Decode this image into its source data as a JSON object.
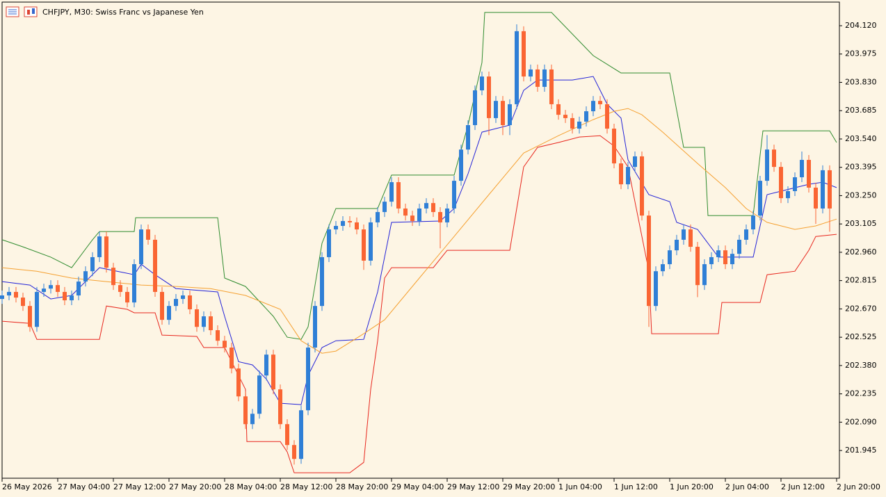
{
  "chart_data": {
    "type": "candlestick",
    "title": "CHFJPY, M30:  Swiss Franc vs Japanese Yen",
    "up_color": "#2f7fd6",
    "down_color": "#fa6533",
    "xlim": [
      0,
      120
    ],
    "ylim": [
      201.803,
      204.241
    ],
    "yticks": [
      {
        "value": 204.12,
        "label": "204.120"
      },
      203.975,
      {
        "value": 203.83,
        "label": "203.830"
      },
      203.685,
      {
        "value": 203.54,
        "label": "203.540"
      },
      203.395,
      {
        "value": 203.25,
        "label": "203.250"
      },
      203.105,
      {
        "value": 202.96,
        "label": "202.960"
      },
      202.815,
      {
        "value": 202.67,
        "label": "202.670"
      },
      202.525,
      {
        "value": 202.38,
        "label": "202.380"
      },
      202.235,
      {
        "value": 202.09,
        "label": "202.090"
      },
      201.945
    ],
    "xticks": [
      {
        "value": 0,
        "label": "26 May 2026"
      },
      {
        "value": 8,
        "label": "27 May 04:00"
      },
      {
        "value": 16,
        "label": "27 May 12:00"
      },
      {
        "value": 24,
        "label": "27 May 20:00"
      },
      {
        "value": 32,
        "label": "28 May 04:00"
      },
      {
        "value": 40,
        "label": "28 May 12:00"
      },
      {
        "value": 48,
        "label": "28 May 20:00"
      },
      {
        "value": 56,
        "label": "29 May 04:00"
      },
      {
        "value": 64,
        "label": "29 May 12:00"
      },
      {
        "value": 72,
        "label": "29 May 20:00"
      },
      {
        "value": 80,
        "label": "1 Jun 04:00"
      },
      {
        "value": 88,
        "label": "1 Jun 12:00"
      },
      {
        "value": 96,
        "label": "1 Jun 20:00"
      },
      {
        "value": 104,
        "label": "2 Jun 04:00"
      },
      {
        "value": 112,
        "label": "2 Jun 12:00"
      },
      {
        "value": 120,
        "label": "2 Jun 20:00"
      }
    ],
    "x": [
      0,
      1,
      2,
      3,
      4,
      5,
      6,
      7,
      8,
      9,
      10,
      11,
      12,
      13,
      14,
      15,
      16,
      17,
      18,
      19,
      20,
      21,
      22,
      23,
      24,
      25,
      26,
      27,
      28,
      29,
      30,
      31,
      32,
      33,
      34,
      35,
      36,
      37,
      38,
      39,
      40,
      41,
      42,
      43,
      44,
      45,
      46,
      47,
      48,
      49,
      50,
      51,
      52,
      53,
      54,
      55,
      56,
      57,
      58,
      59,
      60,
      61,
      62,
      63,
      64,
      65,
      66,
      67,
      68,
      69,
      70,
      71,
      72,
      73,
      74,
      75,
      76,
      77,
      78,
      79,
      80,
      81,
      82,
      83,
      84,
      85,
      86,
      87,
      88,
      89,
      90,
      91,
      92,
      93,
      94,
      95,
      96,
      97,
      98,
      99,
      100,
      101,
      102,
      103,
      104,
      105,
      106,
      107,
      108,
      109,
      110,
      111,
      112,
      113,
      114,
      115,
      116,
      117,
      118,
      119
    ],
    "candles": [
      [
        202.721,
        202.764,
        202.696,
        202.739
      ],
      [
        202.739,
        202.782,
        202.714,
        202.757
      ],
      [
        202.757,
        202.782,
        202.703,
        202.728
      ],
      [
        202.728,
        202.753,
        202.66,
        202.685
      ],
      [
        202.685,
        202.71,
        202.553,
        202.578
      ],
      [
        202.578,
        202.782,
        202.553,
        202.757
      ],
      [
        202.757,
        202.799,
        202.732,
        202.774
      ],
      [
        202.774,
        202.817,
        202.749,
        202.792
      ],
      [
        202.792,
        202.817,
        202.732,
        202.757
      ],
      [
        202.757,
        202.782,
        202.689,
        202.714
      ],
      [
        202.714,
        202.764,
        202.689,
        202.739
      ],
      [
        202.739,
        202.835,
        202.714,
        202.81
      ],
      [
        202.81,
        202.888,
        202.785,
        202.863
      ],
      [
        202.863,
        202.96,
        202.838,
        202.935
      ],
      [
        202.935,
        203.066,
        202.91,
        203.041
      ],
      [
        203.041,
        203.066,
        202.856,
        202.881
      ],
      [
        202.881,
        202.906,
        202.767,
        202.792
      ],
      [
        202.792,
        202.817,
        202.732,
        202.757
      ],
      [
        202.757,
        202.782,
        202.678,
        202.703
      ],
      [
        202.703,
        202.924,
        202.678,
        202.899
      ],
      [
        202.899,
        203.102,
        202.874,
        203.077
      ],
      [
        203.077,
        203.102,
        202.999,
        203.024
      ],
      [
        203.024,
        203.049,
        202.732,
        202.757
      ],
      [
        202.757,
        202.782,
        202.589,
        202.614
      ],
      [
        202.614,
        202.71,
        202.589,
        202.685
      ],
      [
        202.685,
        202.746,
        202.66,
        202.721
      ],
      [
        202.721,
        202.764,
        202.696,
        202.739
      ],
      [
        202.739,
        202.764,
        202.643,
        202.668
      ],
      [
        202.668,
        202.693,
        202.553,
        202.578
      ],
      [
        202.578,
        202.657,
        202.553,
        202.632
      ],
      [
        202.632,
        202.657,
        202.536,
        202.561
      ],
      [
        202.561,
        202.586,
        202.482,
        202.507
      ],
      [
        202.507,
        202.532,
        202.447,
        202.472
      ],
      [
        202.472,
        202.497,
        202.34,
        202.365
      ],
      [
        202.365,
        202.39,
        202.197,
        202.222
      ],
      [
        202.222,
        202.247,
        202.055,
        202.08
      ],
      [
        202.08,
        202.158,
        202.055,
        202.133
      ],
      [
        202.133,
        202.354,
        202.108,
        202.329
      ],
      [
        202.329,
        202.461,
        202.304,
        202.436
      ],
      [
        202.436,
        202.461,
        202.233,
        202.258
      ],
      [
        202.258,
        202.283,
        202.055,
        202.08
      ],
      [
        202.08,
        202.105,
        201.948,
        201.973
      ],
      [
        201.973,
        201.998,
        201.873,
        201.902
      ],
      [
        201.902,
        202.176,
        201.877,
        202.151
      ],
      [
        202.151,
        202.497,
        202.126,
        202.472
      ],
      [
        202.472,
        202.71,
        202.447,
        202.685
      ],
      [
        202.685,
        202.96,
        202.66,
        202.935
      ],
      [
        202.935,
        203.102,
        202.91,
        203.077
      ],
      [
        203.077,
        203.12,
        203.052,
        203.095
      ],
      [
        203.095,
        203.145,
        203.07,
        203.12
      ],
      [
        203.12,
        203.145,
        203.088,
        203.113
      ],
      [
        203.113,
        203.138,
        203.052,
        203.077
      ],
      [
        203.077,
        203.102,
        202.87,
        202.917
      ],
      [
        202.917,
        203.138,
        202.892,
        203.113
      ],
      [
        203.113,
        203.191,
        203.088,
        203.166
      ],
      [
        203.166,
        203.244,
        203.141,
        203.219
      ],
      [
        203.219,
        203.344,
        203.194,
        203.319
      ],
      [
        203.319,
        203.344,
        203.159,
        203.184
      ],
      [
        203.184,
        203.209,
        203.123,
        203.148
      ],
      [
        203.148,
        203.173,
        203.095,
        203.12
      ],
      [
        203.12,
        203.209,
        203.095,
        203.184
      ],
      [
        203.184,
        203.237,
        203.159,
        203.212
      ],
      [
        203.212,
        203.237,
        203.141,
        203.166
      ],
      [
        203.166,
        203.191,
        202.98,
        203.113
      ],
      [
        203.113,
        203.209,
        203.088,
        203.184
      ],
      [
        203.184,
        203.351,
        203.159,
        203.326
      ],
      [
        203.326,
        203.511,
        203.301,
        203.486
      ],
      [
        203.486,
        203.636,
        203.461,
        203.611
      ],
      [
        203.611,
        203.814,
        203.586,
        203.789
      ],
      [
        203.789,
        203.885,
        203.764,
        203.86
      ],
      [
        203.86,
        203.885,
        203.56,
        203.647
      ],
      [
        203.647,
        203.76,
        203.622,
        203.735
      ],
      [
        203.735,
        203.76,
        203.56,
        203.611
      ],
      [
        203.611,
        203.743,
        203.56,
        203.718
      ],
      [
        203.718,
        204.127,
        203.693,
        204.092
      ],
      [
        204.092,
        204.117,
        203.835,
        203.86
      ],
      [
        203.86,
        203.921,
        203.835,
        203.896
      ],
      [
        203.896,
        203.921,
        203.782,
        203.807
      ],
      [
        203.807,
        203.921,
        203.782,
        203.896
      ],
      [
        203.896,
        203.921,
        203.693,
        203.718
      ],
      [
        203.718,
        203.743,
        203.639,
        203.664
      ],
      [
        203.664,
        203.689,
        203.622,
        203.647
      ],
      [
        203.647,
        203.672,
        203.568,
        203.593
      ],
      [
        203.593,
        203.654,
        203.568,
        203.629
      ],
      [
        203.629,
        203.707,
        203.604,
        203.682
      ],
      [
        203.682,
        203.76,
        203.657,
        203.735
      ],
      [
        203.735,
        203.76,
        203.693,
        203.718
      ],
      [
        203.718,
        203.743,
        203.568,
        203.593
      ],
      [
        203.593,
        203.618,
        203.39,
        203.415
      ],
      [
        203.415,
        203.44,
        203.283,
        203.308
      ],
      [
        203.308,
        203.422,
        203.283,
        203.397
      ],
      [
        203.397,
        203.476,
        203.372,
        203.451
      ],
      [
        203.451,
        203.476,
        203.123,
        203.148
      ],
      [
        203.148,
        203.173,
        202.578,
        202.685
      ],
      [
        202.685,
        202.888,
        202.66,
        202.863
      ],
      [
        202.863,
        202.924,
        202.838,
        202.899
      ],
      [
        202.899,
        202.995,
        202.874,
        202.97
      ],
      [
        202.97,
        203.049,
        202.945,
        203.024
      ],
      [
        203.024,
        203.102,
        202.999,
        203.077
      ],
      [
        203.077,
        203.102,
        202.963,
        202.988
      ],
      [
        202.988,
        203.013,
        202.73,
        202.792
      ],
      [
        202.792,
        202.924,
        202.767,
        202.899
      ],
      [
        202.899,
        202.96,
        202.874,
        202.935
      ],
      [
        202.935,
        202.995,
        202.91,
        202.97
      ],
      [
        202.97,
        202.995,
        202.874,
        202.899
      ],
      [
        202.899,
        202.977,
        202.874,
        202.952
      ],
      [
        202.952,
        203.049,
        202.927,
        203.024
      ],
      [
        203.024,
        203.102,
        202.999,
        203.077
      ],
      [
        203.077,
        203.173,
        203.052,
        203.148
      ],
      [
        203.148,
        203.351,
        203.123,
        203.326
      ],
      [
        203.326,
        203.56,
        203.301,
        203.486
      ],
      [
        203.486,
        203.511,
        203.372,
        203.397
      ],
      [
        203.397,
        203.422,
        203.212,
        203.237
      ],
      [
        203.237,
        203.298,
        203.212,
        203.273
      ],
      [
        203.273,
        203.369,
        203.248,
        203.344
      ],
      [
        203.344,
        203.476,
        203.319,
        203.433
      ],
      [
        203.433,
        203.458,
        203.266,
        203.291
      ],
      [
        203.291,
        203.316,
        203.105,
        203.184
      ],
      [
        203.184,
        203.405,
        203.159,
        203.38
      ],
      [
        203.38,
        203.405,
        203.065,
        203.184
      ]
    ],
    "series": [
      {
        "color": "#2e8b2e",
        "x": [
          0,
          3,
          7,
          10,
          13,
          14,
          19,
          19.2,
          31,
          32,
          35,
          39,
          41,
          43,
          44,
          46,
          48,
          54,
          56,
          65,
          67,
          69,
          69.4,
          79,
          85,
          89,
          96,
          98,
          101,
          101.5,
          108,
          109.4,
          119,
          120
        ],
        "values": [
          203.024,
          202.988,
          202.935,
          202.881,
          203.024,
          203.066,
          203.066,
          203.137,
          203.137,
          202.828,
          202.785,
          202.632,
          202.525,
          202.514,
          202.578,
          203.006,
          203.184,
          203.184,
          203.355,
          203.355,
          203.611,
          203.931,
          204.188,
          204.188,
          203.967,
          203.878,
          203.878,
          203.497,
          203.497,
          203.148,
          203.148,
          203.582,
          203.582,
          203.522
        ]
      },
      {
        "color": "#e8251c",
        "x": [
          0,
          4,
          5,
          14,
          15,
          18,
          19,
          22,
          23,
          28,
          29,
          32,
          35,
          35.2,
          40,
          41,
          42,
          50,
          52,
          53,
          54,
          55,
          56,
          62,
          64,
          73,
          74,
          75,
          77,
          80,
          83,
          86,
          88,
          90,
          93,
          93.4,
          103,
          103.5,
          109,
          110,
          114,
          116,
          117,
          120
        ],
        "values": [
          202.607,
          202.596,
          202.514,
          202.514,
          202.685,
          202.668,
          202.65,
          202.65,
          202.536,
          202.529,
          202.472,
          202.472,
          202.258,
          201.991,
          201.991,
          201.938,
          201.831,
          201.831,
          201.884,
          202.258,
          202.507,
          202.828,
          202.881,
          202.881,
          202.97,
          202.97,
          203.184,
          203.397,
          203.497,
          203.522,
          203.55,
          203.557,
          203.504,
          203.397,
          202.863,
          202.543,
          202.543,
          202.703,
          202.703,
          202.845,
          202.863,
          202.97,
          203.041,
          203.052
        ]
      },
      {
        "color": "#2323d8",
        "x": [
          0,
          4,
          7,
          10,
          14,
          19,
          20,
          22,
          25,
          31,
          32,
          34,
          36,
          38,
          40,
          43,
          44,
          46,
          48,
          52,
          54,
          56,
          63,
          65,
          67,
          69,
          73,
          75,
          77,
          82,
          85,
          87,
          89,
          90,
          93,
          96,
          97,
          100,
          103,
          108,
          110,
          116,
          118,
          120
        ],
        "values": [
          202.81,
          202.792,
          202.721,
          202.739,
          202.881,
          202.845,
          202.899,
          202.845,
          202.774,
          202.757,
          202.632,
          202.4,
          202.383,
          202.311,
          202.187,
          202.18,
          202.329,
          202.472,
          202.507,
          202.514,
          202.757,
          203.113,
          203.12,
          203.184,
          203.362,
          203.575,
          203.611,
          203.789,
          203.842,
          203.842,
          203.86,
          203.718,
          203.647,
          203.433,
          203.255,
          203.219,
          203.113,
          203.077,
          202.935,
          202.935,
          203.255,
          203.308,
          203.319,
          203.291
        ]
      },
      {
        "color": "#f5a030",
        "x": [
          0,
          5,
          10,
          15,
          20,
          25,
          30,
          35,
          40,
          43,
          46,
          48,
          52,
          55,
          60,
          65,
          70,
          75,
          80,
          85,
          88,
          90,
          92,
          95,
          100,
          104,
          107,
          110,
          114,
          117,
          120
        ],
        "values": [
          202.881,
          202.863,
          202.828,
          202.81,
          202.792,
          202.785,
          202.774,
          202.739,
          202.668,
          202.507,
          202.443,
          202.454,
          202.543,
          202.614,
          202.828,
          203.041,
          203.255,
          203.468,
          203.557,
          203.639,
          203.682,
          203.696,
          203.664,
          203.575,
          203.415,
          203.291,
          203.184,
          203.113,
          203.077,
          203.095,
          203.13
        ]
      }
    ]
  }
}
